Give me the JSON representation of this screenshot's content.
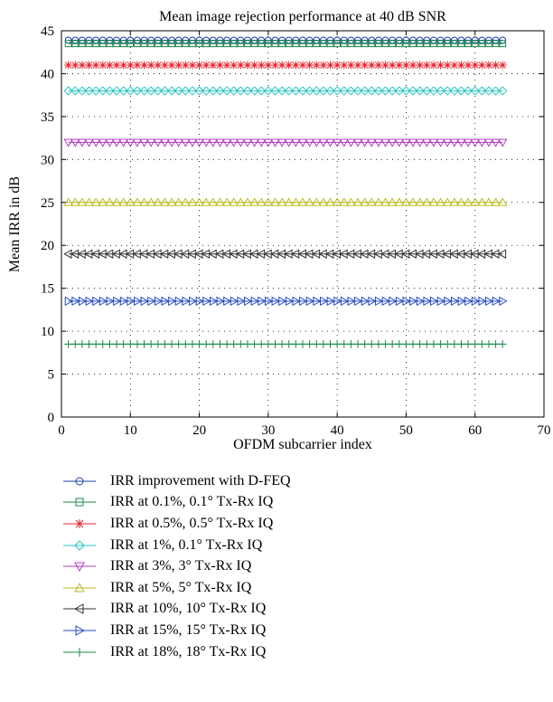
{
  "chart_data": {
    "type": "line",
    "title": "Mean image rejection performance at 40 dB SNR",
    "xlabel": "OFDM subcarrier index",
    "ylabel": "Mean IRR in dB",
    "xlim": [
      0,
      70
    ],
    "ylim": [
      0,
      45
    ],
    "xticks": [
      "0",
      "10",
      "20",
      "30",
      "40",
      "50",
      "60",
      "70"
    ],
    "yticks": [
      "0",
      "5",
      "10",
      "15",
      "20",
      "25",
      "30",
      "35",
      "40",
      "45"
    ],
    "grid": "dotted",
    "legend_placement": "below",
    "x": [
      1,
      64
    ],
    "series": [
      {
        "name": "IRR improvement with D-FEQ",
        "value": 43.9,
        "marker": "circle",
        "color": "#1f3fa8"
      },
      {
        "name": "IRR at 0.1%, 0.1° Tx-Rx IQ",
        "value": 43.5,
        "marker": "square",
        "color": "#1a8a4a"
      },
      {
        "name": "IRR at 0.5%, 0.5° Tx-Rx IQ",
        "value": 41.0,
        "marker": "star",
        "color": "#e8202a"
      },
      {
        "name": "IRR at 1%, 0.1° Tx-Rx IQ",
        "value": 38.0,
        "marker": "diamond",
        "color": "#29c4c0"
      },
      {
        "name": "IRR at 3%, 3° Tx-Rx IQ",
        "value": 32.0,
        "marker": "triangle-down",
        "color": "#b03cbf"
      },
      {
        "name": "IRR at 5%, 5° Tx-Rx IQ",
        "value": 25.0,
        "marker": "triangle-up",
        "color": "#bcbc22"
      },
      {
        "name": "IRR at 10%, 10° Tx-Rx IQ",
        "value": 19.0,
        "marker": "triangle-left",
        "color": "#333333"
      },
      {
        "name": "IRR at 15%, 15° Tx-Rx IQ",
        "value": 13.5,
        "marker": "triangle-right",
        "color": "#2a4bc0"
      },
      {
        "name": "IRR at 18%, 18° Tx-Rx IQ",
        "value": 8.5,
        "marker": "plus",
        "color": "#1a8a4a"
      }
    ]
  }
}
